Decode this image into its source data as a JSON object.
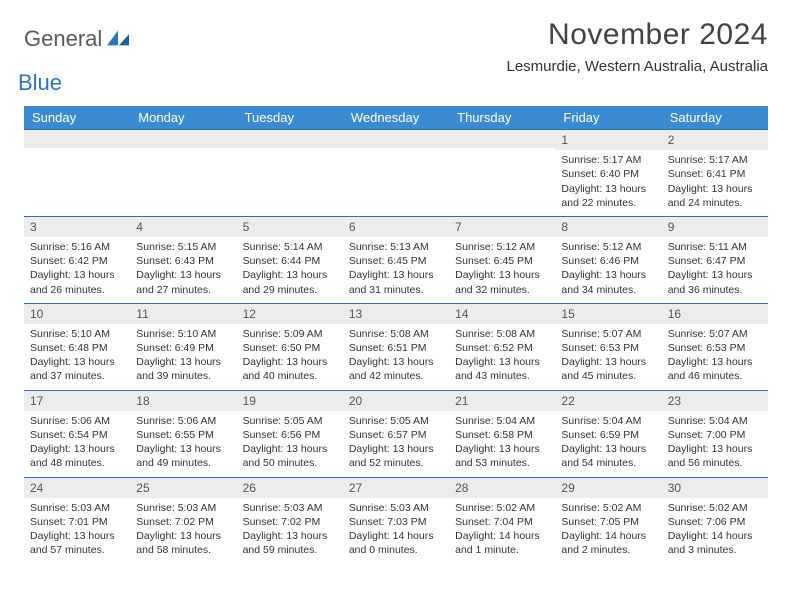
{
  "brand": {
    "text1": "General",
    "text2": "Blue"
  },
  "title": "November 2024",
  "location": "Lesmurdie, Western Australia, Australia",
  "header_bg": "#3b8bd0",
  "weekday_bg": "#ececec",
  "week_border": "#2a6fb3",
  "weekdays": [
    "Sunday",
    "Monday",
    "Tuesday",
    "Wednesday",
    "Thursday",
    "Friday",
    "Saturday"
  ],
  "weeks": [
    [
      null,
      null,
      null,
      null,
      null,
      {
        "n": "1",
        "sr": "Sunrise: 5:17 AM",
        "ss": "Sunset: 6:40 PM",
        "dl": "Daylight: 13 hours and 22 minutes."
      },
      {
        "n": "2",
        "sr": "Sunrise: 5:17 AM",
        "ss": "Sunset: 6:41 PM",
        "dl": "Daylight: 13 hours and 24 minutes."
      }
    ],
    [
      {
        "n": "3",
        "sr": "Sunrise: 5:16 AM",
        "ss": "Sunset: 6:42 PM",
        "dl": "Daylight: 13 hours and 26 minutes."
      },
      {
        "n": "4",
        "sr": "Sunrise: 5:15 AM",
        "ss": "Sunset: 6:43 PM",
        "dl": "Daylight: 13 hours and 27 minutes."
      },
      {
        "n": "5",
        "sr": "Sunrise: 5:14 AM",
        "ss": "Sunset: 6:44 PM",
        "dl": "Daylight: 13 hours and 29 minutes."
      },
      {
        "n": "6",
        "sr": "Sunrise: 5:13 AM",
        "ss": "Sunset: 6:45 PM",
        "dl": "Daylight: 13 hours and 31 minutes."
      },
      {
        "n": "7",
        "sr": "Sunrise: 5:12 AM",
        "ss": "Sunset: 6:45 PM",
        "dl": "Daylight: 13 hours and 32 minutes."
      },
      {
        "n": "8",
        "sr": "Sunrise: 5:12 AM",
        "ss": "Sunset: 6:46 PM",
        "dl": "Daylight: 13 hours and 34 minutes."
      },
      {
        "n": "9",
        "sr": "Sunrise: 5:11 AM",
        "ss": "Sunset: 6:47 PM",
        "dl": "Daylight: 13 hours and 36 minutes."
      }
    ],
    [
      {
        "n": "10",
        "sr": "Sunrise: 5:10 AM",
        "ss": "Sunset: 6:48 PM",
        "dl": "Daylight: 13 hours and 37 minutes."
      },
      {
        "n": "11",
        "sr": "Sunrise: 5:10 AM",
        "ss": "Sunset: 6:49 PM",
        "dl": "Daylight: 13 hours and 39 minutes."
      },
      {
        "n": "12",
        "sr": "Sunrise: 5:09 AM",
        "ss": "Sunset: 6:50 PM",
        "dl": "Daylight: 13 hours and 40 minutes."
      },
      {
        "n": "13",
        "sr": "Sunrise: 5:08 AM",
        "ss": "Sunset: 6:51 PM",
        "dl": "Daylight: 13 hours and 42 minutes."
      },
      {
        "n": "14",
        "sr": "Sunrise: 5:08 AM",
        "ss": "Sunset: 6:52 PM",
        "dl": "Daylight: 13 hours and 43 minutes."
      },
      {
        "n": "15",
        "sr": "Sunrise: 5:07 AM",
        "ss": "Sunset: 6:53 PM",
        "dl": "Daylight: 13 hours and 45 minutes."
      },
      {
        "n": "16",
        "sr": "Sunrise: 5:07 AM",
        "ss": "Sunset: 6:53 PM",
        "dl": "Daylight: 13 hours and 46 minutes."
      }
    ],
    [
      {
        "n": "17",
        "sr": "Sunrise: 5:06 AM",
        "ss": "Sunset: 6:54 PM",
        "dl": "Daylight: 13 hours and 48 minutes."
      },
      {
        "n": "18",
        "sr": "Sunrise: 5:06 AM",
        "ss": "Sunset: 6:55 PM",
        "dl": "Daylight: 13 hours and 49 minutes."
      },
      {
        "n": "19",
        "sr": "Sunrise: 5:05 AM",
        "ss": "Sunset: 6:56 PM",
        "dl": "Daylight: 13 hours and 50 minutes."
      },
      {
        "n": "20",
        "sr": "Sunrise: 5:05 AM",
        "ss": "Sunset: 6:57 PM",
        "dl": "Daylight: 13 hours and 52 minutes."
      },
      {
        "n": "21",
        "sr": "Sunrise: 5:04 AM",
        "ss": "Sunset: 6:58 PM",
        "dl": "Daylight: 13 hours and 53 minutes."
      },
      {
        "n": "22",
        "sr": "Sunrise: 5:04 AM",
        "ss": "Sunset: 6:59 PM",
        "dl": "Daylight: 13 hours and 54 minutes."
      },
      {
        "n": "23",
        "sr": "Sunrise: 5:04 AM",
        "ss": "Sunset: 7:00 PM",
        "dl": "Daylight: 13 hours and 56 minutes."
      }
    ],
    [
      {
        "n": "24",
        "sr": "Sunrise: 5:03 AM",
        "ss": "Sunset: 7:01 PM",
        "dl": "Daylight: 13 hours and 57 minutes."
      },
      {
        "n": "25",
        "sr": "Sunrise: 5:03 AM",
        "ss": "Sunset: 7:02 PM",
        "dl": "Daylight: 13 hours and 58 minutes."
      },
      {
        "n": "26",
        "sr": "Sunrise: 5:03 AM",
        "ss": "Sunset: 7:02 PM",
        "dl": "Daylight: 13 hours and 59 minutes."
      },
      {
        "n": "27",
        "sr": "Sunrise: 5:03 AM",
        "ss": "Sunset: 7:03 PM",
        "dl": "Daylight: 14 hours and 0 minutes."
      },
      {
        "n": "28",
        "sr": "Sunrise: 5:02 AM",
        "ss": "Sunset: 7:04 PM",
        "dl": "Daylight: 14 hours and 1 minute."
      },
      {
        "n": "29",
        "sr": "Sunrise: 5:02 AM",
        "ss": "Sunset: 7:05 PM",
        "dl": "Daylight: 14 hours and 2 minutes."
      },
      {
        "n": "30",
        "sr": "Sunrise: 5:02 AM",
        "ss": "Sunset: 7:06 PM",
        "dl": "Daylight: 14 hours and 3 minutes."
      }
    ]
  ]
}
